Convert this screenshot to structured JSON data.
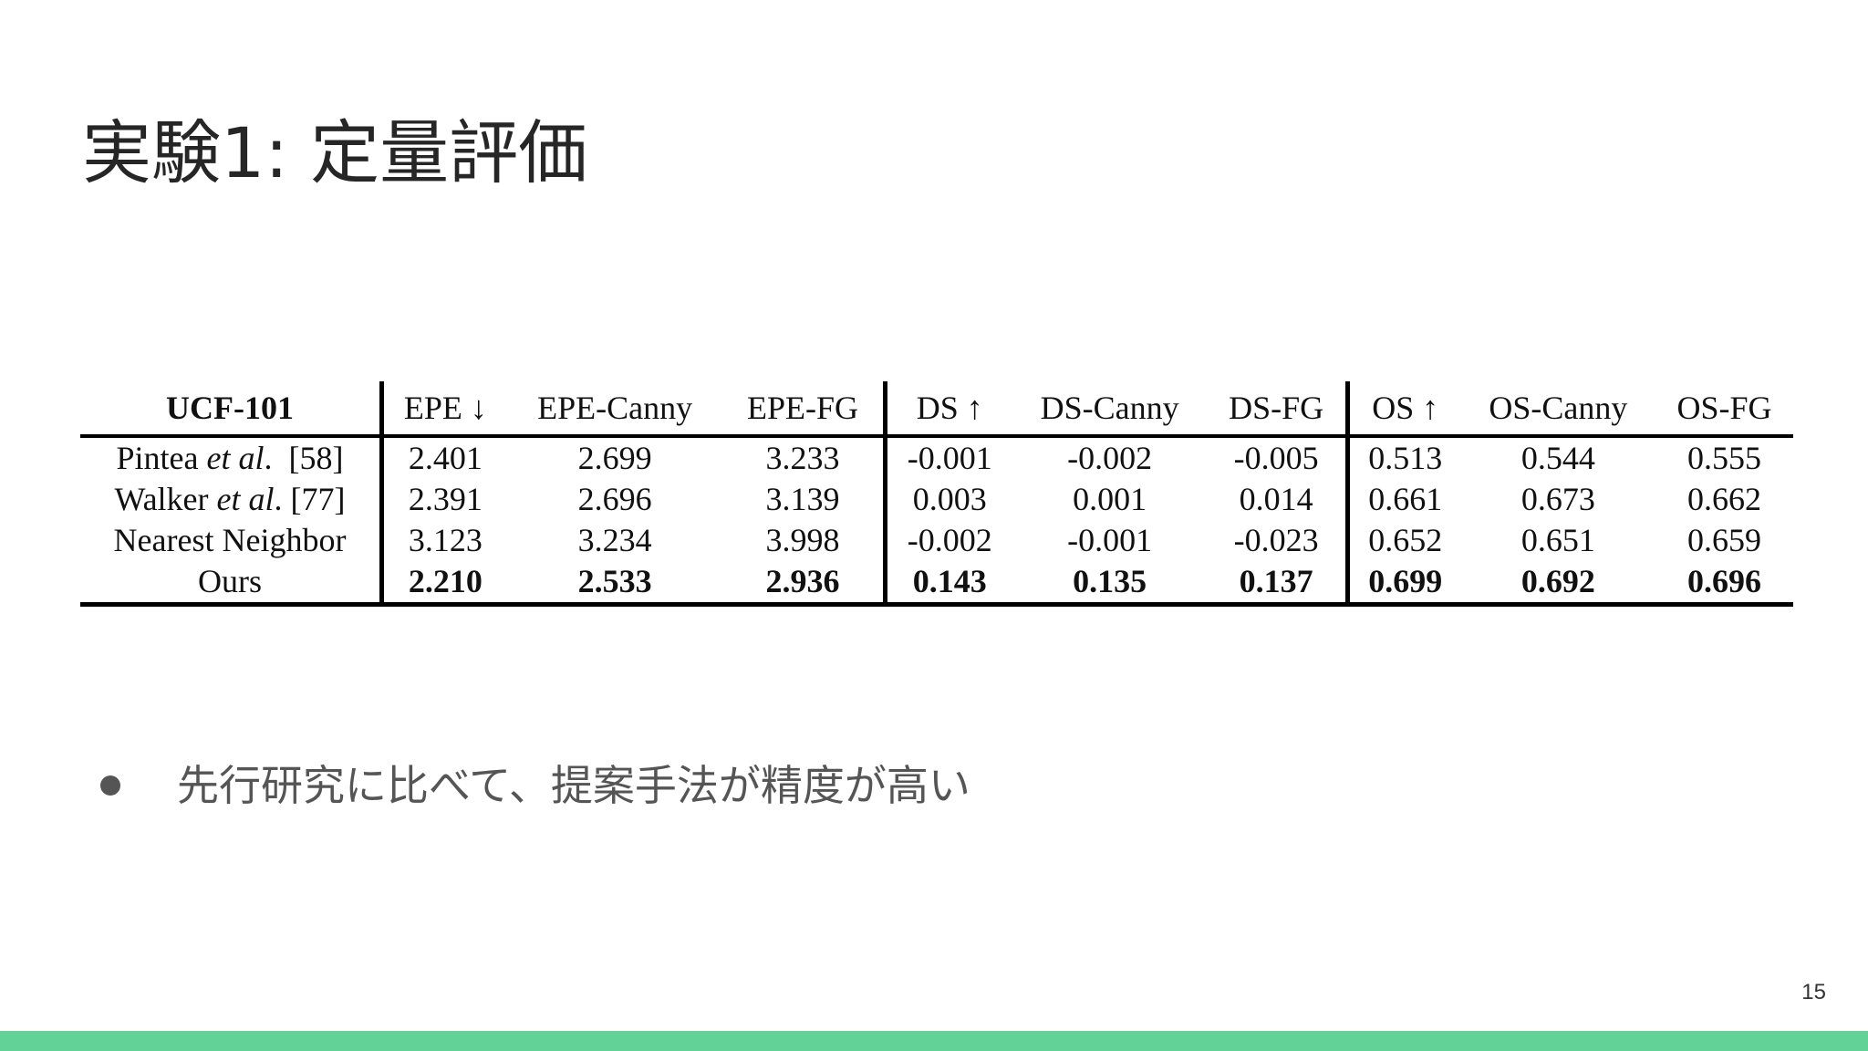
{
  "slide": {
    "title": "実験1: 定量評価",
    "bullets": [
      "先行研究に比べて、提案手法が精度が高い"
    ],
    "page_number": "15",
    "accent_color": "#63d297"
  },
  "table": {
    "dataset": "UCF-101",
    "columns": [
      "EPE ↓",
      "EPE-Canny",
      "EPE-FG",
      "DS ↑",
      "DS-Canny",
      "DS-FG",
      "OS ↑",
      "OS-Canny",
      "OS-FG"
    ],
    "rows": [
      {
        "method": "Pintea",
        "method_italic": "et al",
        "method_suffix": ".  [58]",
        "values": [
          "2.401",
          "2.699",
          "3.233",
          "-0.001",
          "-0.002",
          "-0.005",
          "0.513",
          "0.544",
          "0.555"
        ]
      },
      {
        "method": "Walker",
        "method_italic": "et al",
        "method_suffix": ". [77]",
        "values": [
          "2.391",
          "2.696",
          "3.139",
          "0.003",
          "0.001",
          "0.014",
          "0.661",
          "0.673",
          "0.662"
        ]
      },
      {
        "method": "Nearest Neighbor",
        "method_italic": "",
        "method_suffix": "",
        "values": [
          "3.123",
          "3.234",
          "3.998",
          "-0.002",
          "-0.001",
          "-0.023",
          "0.652",
          "0.651",
          "0.659"
        ]
      },
      {
        "method": "Ours",
        "method_italic": "",
        "method_suffix": "",
        "values": [
          "2.210",
          "2.533",
          "2.936",
          "0.143",
          "0.135",
          "0.137",
          "0.699",
          "0.692",
          "0.696"
        ]
      }
    ]
  }
}
